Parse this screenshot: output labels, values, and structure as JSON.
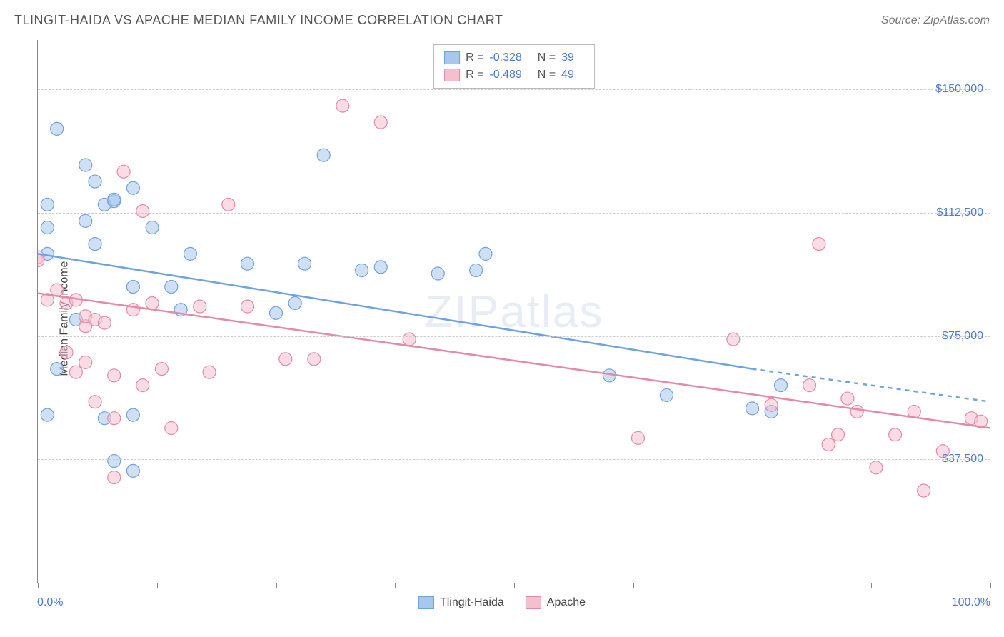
{
  "header": {
    "title": "TLINGIT-HAIDA VS APACHE MEDIAN FAMILY INCOME CORRELATION CHART",
    "source_label": "Source: ZipAtlas.com"
  },
  "chart": {
    "type": "scatter",
    "ylabel": "Median Family Income",
    "watermark": "ZIPatlas",
    "xlim": [
      0,
      100
    ],
    "ylim": [
      0,
      165000
    ],
    "y_ticks": [
      37500,
      75000,
      112500,
      150000
    ],
    "y_tick_labels": [
      "$37,500",
      "$75,000",
      "$112,500",
      "$150,000"
    ],
    "x_ticks": [
      0,
      12.5,
      25,
      37.5,
      50,
      62.5,
      75,
      87.5,
      100
    ],
    "x_axis_labels": {
      "left": "0.0%",
      "right": "100.0%"
    },
    "grid_color": "#cccccc",
    "background_color": "#ffffff",
    "axis_color": "#888888",
    "label_color": "#4a7bd0",
    "marker_radius": 9,
    "marker_opacity": 0.55,
    "series": [
      {
        "name": "Tlingit-Haida",
        "color_fill": "#a8c7ec",
        "color_stroke": "#6fa3de",
        "R": "-0.328",
        "N": "39",
        "trend": {
          "y_at_x0": 100000,
          "y_at_x_end": 65000,
          "x_end_solid": 75,
          "x_end_dash": 100,
          "y_at_100": 55000,
          "line_width": 2.5
        },
        "points": [
          [
            1,
            115000
          ],
          [
            1,
            108000
          ],
          [
            1,
            100000
          ],
          [
            1,
            51000
          ],
          [
            2,
            65000
          ],
          [
            2,
            138000
          ],
          [
            4,
            80000
          ],
          [
            5,
            127000
          ],
          [
            5,
            110000
          ],
          [
            6,
            103000
          ],
          [
            6,
            122000
          ],
          [
            7,
            50000
          ],
          [
            7,
            115000
          ],
          [
            8,
            37000
          ],
          [
            8,
            116000
          ],
          [
            8,
            116500
          ],
          [
            10,
            34000
          ],
          [
            10,
            51000
          ],
          [
            10,
            90000
          ],
          [
            10,
            120000
          ],
          [
            12,
            108000
          ],
          [
            14,
            90000
          ],
          [
            15,
            83000
          ],
          [
            16,
            100000
          ],
          [
            22,
            97000
          ],
          [
            25,
            82000
          ],
          [
            27,
            85000
          ],
          [
            28,
            97000
          ],
          [
            30,
            130000
          ],
          [
            34,
            95000
          ],
          [
            36,
            96000
          ],
          [
            42,
            94000
          ],
          [
            46,
            95000
          ],
          [
            47,
            100000
          ],
          [
            60,
            63000
          ],
          [
            66,
            57000
          ],
          [
            75,
            53000
          ],
          [
            77,
            52000
          ],
          [
            78,
            60000
          ]
        ]
      },
      {
        "name": "Apache",
        "color_fill": "#f4c0cd",
        "color_stroke": "#e48aa5",
        "R": "-0.489",
        "N": "49",
        "trend": {
          "y_at_x0": 88000,
          "y_at_x_end": 47000,
          "x_end_solid": 100,
          "x_end_dash": 100,
          "y_at_100": 47000,
          "line_width": 2.5
        },
        "points": [
          [
            0,
            99000
          ],
          [
            0,
            98000
          ],
          [
            1,
            86000
          ],
          [
            2,
            89000
          ],
          [
            3,
            70000
          ],
          [
            3,
            85000
          ],
          [
            4,
            86000
          ],
          [
            4,
            64000
          ],
          [
            5,
            78000
          ],
          [
            5,
            67000
          ],
          [
            5,
            81000
          ],
          [
            6,
            55000
          ],
          [
            6,
            80000
          ],
          [
            7,
            79000
          ],
          [
            8,
            50000
          ],
          [
            8,
            32000
          ],
          [
            8,
            63000
          ],
          [
            9,
            125000
          ],
          [
            10,
            83000
          ],
          [
            11,
            60000
          ],
          [
            11,
            113000
          ],
          [
            12,
            85000
          ],
          [
            13,
            65000
          ],
          [
            14,
            47000
          ],
          [
            17,
            84000
          ],
          [
            18,
            64000
          ],
          [
            20,
            115000
          ],
          [
            22,
            84000
          ],
          [
            26,
            68000
          ],
          [
            29,
            68000
          ],
          [
            32,
            145000
          ],
          [
            36,
            140000
          ],
          [
            39,
            74000
          ],
          [
            63,
            44000
          ],
          [
            73,
            74000
          ],
          [
            77,
            54000
          ],
          [
            81,
            60000
          ],
          [
            82,
            103000
          ],
          [
            83,
            42000
          ],
          [
            84,
            45000
          ],
          [
            85,
            56000
          ],
          [
            86,
            52000
          ],
          [
            88,
            35000
          ],
          [
            90,
            45000
          ],
          [
            92,
            52000
          ],
          [
            93,
            28000
          ],
          [
            95,
            40000
          ],
          [
            98,
            50000
          ],
          [
            99,
            49000
          ]
        ]
      }
    ],
    "legend_top": {
      "R_label": "R =",
      "N_label": "N ="
    },
    "legend_bottom": {
      "items": [
        "Tlingit-Haida",
        "Apache"
      ]
    }
  }
}
